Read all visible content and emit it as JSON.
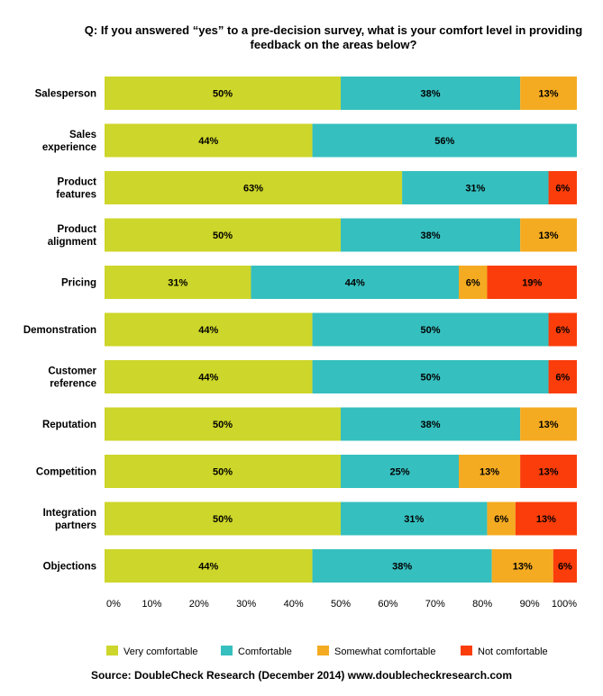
{
  "chart_data": {
    "type": "bar",
    "orientation": "horizontal",
    "stacked": true,
    "title_lines": [
      "Q: If you answered “yes” to a pre-decision survey, what is your comfort level in providing",
      "feedback on the areas below?"
    ],
    "categories": [
      [
        "Salesperson"
      ],
      [
        "Sales",
        "experience"
      ],
      [
        "Product",
        "features"
      ],
      [
        "Product",
        "alignment"
      ],
      [
        "Pricing"
      ],
      [
        "Demonstration"
      ],
      [
        "Customer",
        "reference"
      ],
      [
        "Reputation"
      ],
      [
        "Competition"
      ],
      [
        "Integration",
        "partners"
      ],
      [
        "Objections"
      ]
    ],
    "series": [
      {
        "name": "Very comfortable",
        "color": "#cdd62a",
        "values": [
          50,
          44,
          63,
          50,
          31,
          44,
          44,
          50,
          50,
          50,
          44
        ]
      },
      {
        "name": "Comfortable",
        "color": "#36bfbf",
        "values": [
          38,
          56,
          31,
          38,
          44,
          50,
          50,
          38,
          25,
          31,
          38
        ]
      },
      {
        "name": "Somewhat comfortable",
        "color": "#f4ab21",
        "values": [
          13,
          0,
          0,
          13,
          6,
          0,
          0,
          13,
          13,
          6,
          13
        ]
      },
      {
        "name": "Not comfortable",
        "color": "#fa3d0a",
        "values": [
          0,
          0,
          6,
          0,
          19,
          6,
          6,
          0,
          13,
          13,
          6
        ]
      }
    ],
    "xlim": [
      0,
      100
    ],
    "xticks": [
      "0%",
      "10%",
      "20%",
      "30%",
      "40%",
      "50%",
      "60%",
      "70%",
      "80%",
      "90%",
      "100%"
    ],
    "grid": false,
    "legend_position": "bottom",
    "source": "Source: DoubleCheck Research (December 2014) www.doublecheckresearch.com"
  }
}
